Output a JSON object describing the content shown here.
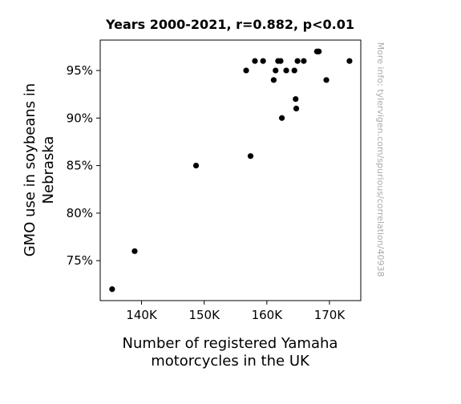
{
  "chart_data": {
    "type": "scatter",
    "title": "Years 2000-2021, r=0.882, p<0.01",
    "xlabel_lines": [
      "Number of registered Yamaha",
      "motorcycles in the UK"
    ],
    "ylabel_lines": [
      "GMO use in soybeans in",
      "Nebraska"
    ],
    "watermark": "More info: tylervigen.com/spurious/correlation/40938",
    "xlim": [
      133400,
      175000
    ],
    "ylim": [
      70.8,
      98.2
    ],
    "x_ticks": [
      140000,
      150000,
      160000,
      170000
    ],
    "x_tick_labels": [
      "140K",
      "150K",
      "160K",
      "170K"
    ],
    "y_ticks": [
      75,
      80,
      85,
      90,
      95
    ],
    "y_tick_labels": [
      "75%",
      "80%",
      "85%",
      "90%",
      "95%"
    ],
    "grid": false,
    "marker_color": "#000000",
    "points": [
      {
        "x": 135300,
        "y": 72
      },
      {
        "x": 138900,
        "y": 76
      },
      {
        "x": 148700,
        "y": 85
      },
      {
        "x": 156700,
        "y": 95
      },
      {
        "x": 157400,
        "y": 86
      },
      {
        "x": 158100,
        "y": 96
      },
      {
        "x": 159400,
        "y": 96
      },
      {
        "x": 161100,
        "y": 94
      },
      {
        "x": 161400,
        "y": 95
      },
      {
        "x": 161800,
        "y": 96
      },
      {
        "x": 162200,
        "y": 96
      },
      {
        "x": 162400,
        "y": 90
      },
      {
        "x": 163100,
        "y": 95
      },
      {
        "x": 164400,
        "y": 95
      },
      {
        "x": 164600,
        "y": 92
      },
      {
        "x": 164700,
        "y": 91
      },
      {
        "x": 164900,
        "y": 96
      },
      {
        "x": 165900,
        "y": 96
      },
      {
        "x": 168000,
        "y": 97
      },
      {
        "x": 168300,
        "y": 97
      },
      {
        "x": 169500,
        "y": 94
      },
      {
        "x": 173200,
        "y": 96
      }
    ]
  }
}
